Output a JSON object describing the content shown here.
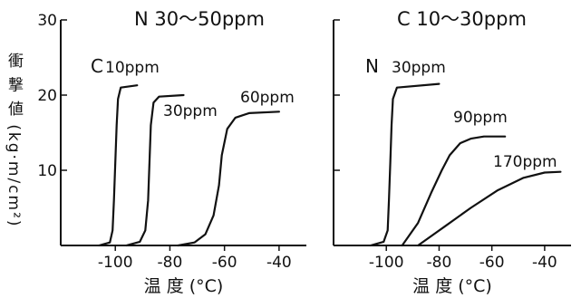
{
  "chart_data": [
    {
      "type": "line",
      "title": "N 30～50ppm",
      "xlabel": "温 度 (°C)",
      "ylabel": "衝 撃 値 (kg·m/cm²)",
      "xlim": [
        -120,
        -30
      ],
      "ylim": [
        0,
        30
      ],
      "xticks": [
        -100,
        -80,
        -60,
        -40
      ],
      "yticks": [
        10,
        20,
        30
      ],
      "group_label": "C",
      "series": [
        {
          "name": "10ppm",
          "x": [
            -106,
            -102,
            -101,
            -100.5,
            -100,
            -99.5,
            -99,
            -98,
            -92
          ],
          "y": [
            0,
            0.4,
            2,
            6,
            11,
            16,
            19.5,
            21,
            21.3
          ]
        },
        {
          "name": "30ppm",
          "x": [
            -96,
            -91,
            -89,
            -88,
            -87.5,
            -87,
            -86,
            -84,
            -75
          ],
          "y": [
            0,
            0.5,
            2,
            6,
            11,
            16,
            19,
            19.8,
            20
          ]
        },
        {
          "name": "60ppm",
          "x": [
            -77,
            -71,
            -67,
            -64,
            -62,
            -61,
            -59,
            -56,
            -51,
            -40
          ],
          "y": [
            0,
            0.4,
            1.5,
            4,
            8,
            12,
            15.5,
            17,
            17.6,
            17.8
          ]
        }
      ]
    },
    {
      "type": "line",
      "title": "C 10～30ppm",
      "xlabel": "温 度 (°C)",
      "ylabel": "",
      "xlim": [
        -120,
        -30
      ],
      "ylim": [
        0,
        30
      ],
      "xticks": [
        -100,
        -80,
        -60,
        -40
      ],
      "yticks": [
        10,
        20,
        30
      ],
      "group_label": "N",
      "series": [
        {
          "name": "30ppm",
          "x": [
            -106,
            -101,
            -99.5,
            -99,
            -98.5,
            -98,
            -97.5,
            -96,
            -80
          ],
          "y": [
            0,
            0.5,
            2,
            6,
            11,
            16,
            19.5,
            21,
            21.5
          ]
        },
        {
          "name": "90ppm",
          "x": [
            -94,
            -88,
            -83,
            -79,
            -76,
            -72,
            -68,
            -63,
            -55
          ],
          "y": [
            0,
            3,
            7,
            10,
            12,
            13.6,
            14.2,
            14.5,
            14.5
          ]
        },
        {
          "name": "170ppm",
          "x": [
            -88,
            -78,
            -68,
            -58,
            -48,
            -40,
            -34
          ],
          "y": [
            0,
            2.5,
            5,
            7.3,
            9,
            9.7,
            9.8
          ]
        }
      ]
    }
  ]
}
